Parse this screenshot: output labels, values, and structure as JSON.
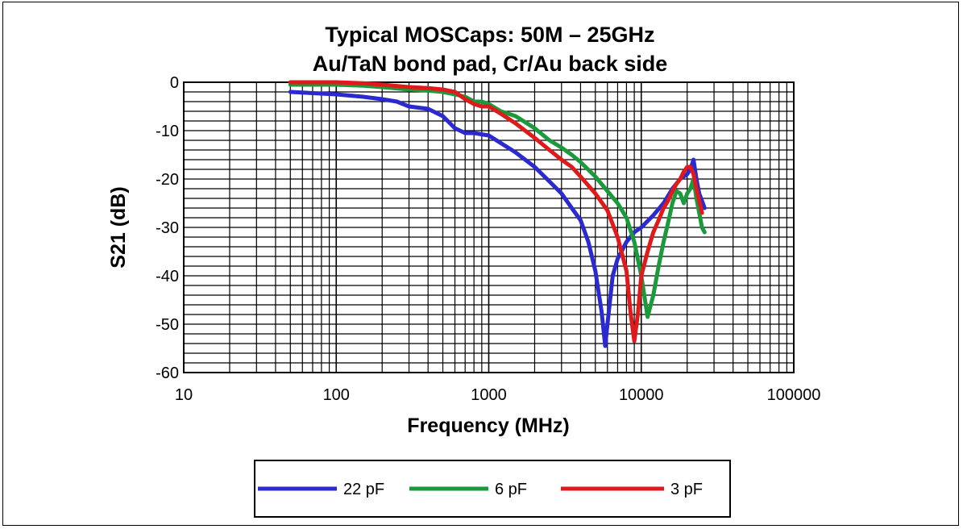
{
  "chart_data": {
    "type": "line",
    "title": "Typical MOSCaps: 50M – 25GHz",
    "subtitle": "Au/TaN bond pad, Cr/Au back side",
    "xlabel": "Frequency (MHz)",
    "ylabel": "S21 (dB)",
    "xscale": "log",
    "xlim": [
      10,
      100000
    ],
    "ylim": [
      -60,
      0
    ],
    "xticks": [
      "10",
      "100",
      "1000",
      "10000",
      "100000"
    ],
    "yticks": [
      "0",
      "-10",
      "-20",
      "-30",
      "-40",
      "-50",
      "-60"
    ],
    "grid": true,
    "legend": "bottom",
    "series": [
      {
        "name": "22 pF",
        "color": "#2a2ad0",
        "x": [
          50,
          100,
          150,
          200,
          250,
          300,
          400,
          500,
          600,
          700,
          800,
          1000,
          1500,
          2000,
          2500,
          3000,
          3500,
          4000,
          4500,
          5000,
          5500,
          5800,
          6000,
          6500,
          7000,
          8000,
          9000,
          10000,
          12000,
          14000,
          16000,
          18000,
          20000,
          21000,
          22000,
          23000,
          24000,
          25000,
          26000
        ],
        "y": [
          -2,
          -2.5,
          -3,
          -3.5,
          -4,
          -5,
          -5.5,
          -7,
          -9.5,
          -10.5,
          -10.5,
          -11,
          -14.5,
          -17.5,
          -20.5,
          -23,
          -26,
          -28.5,
          -33,
          -39,
          -47.5,
          -54.5,
          -50,
          -40,
          -36.5,
          -33,
          -31,
          -30,
          -27.5,
          -25,
          -22,
          -20,
          -19,
          -18,
          -16,
          -20,
          -23,
          -24.5,
          -26
        ]
      },
      {
        "name": "6 pF",
        "color": "#1a9a3a",
        "x": [
          50,
          100,
          150,
          200,
          300,
          400,
          500,
          600,
          700,
          800,
          900,
          1000,
          1200,
          1500,
          2000,
          2500,
          3000,
          3500,
          4000,
          5000,
          6000,
          7000,
          8000,
          9000,
          10000,
          11000,
          12000,
          13000,
          14000,
          15000,
          16000,
          17000,
          18000,
          19000,
          20000,
          21000,
          22000,
          23000,
          24000,
          25000,
          26000
        ],
        "y": [
          -0.5,
          -0.5,
          -0.7,
          -1,
          -1.5,
          -1.7,
          -2,
          -2.5,
          -3,
          -4,
          -4,
          -4.5,
          -6,
          -7,
          -9.5,
          -12,
          -13.5,
          -15,
          -16.5,
          -19.5,
          -22.5,
          -25,
          -28,
          -33,
          -40,
          -48.5,
          -44,
          -38,
          -33,
          -29,
          -25,
          -22.5,
          -23,
          -25,
          -23,
          -22,
          -20,
          -24,
          -27,
          -30,
          -31
        ]
      },
      {
        "name": "3 pF",
        "color": "#e01a1a",
        "x": [
          50,
          100,
          150,
          200,
          300,
          400,
          500,
          600,
          700,
          800,
          900,
          1000,
          1200,
          1500,
          2000,
          2500,
          3000,
          3500,
          4000,
          5000,
          6000,
          7000,
          8000,
          8500,
          9000,
          9500,
          10000,
          11000,
          12000,
          13000,
          14000,
          15000,
          16000,
          17000,
          18000,
          19000,
          20000,
          21000,
          22000,
          23000,
          24000,
          25000
        ],
        "y": [
          0,
          0,
          -0.2,
          -0.5,
          -1,
          -1.2,
          -1.5,
          -2,
          -3.5,
          -4.5,
          -5,
          -5,
          -6.5,
          -8.5,
          -11.5,
          -14,
          -16,
          -17.5,
          -19.5,
          -23,
          -26.5,
          -32,
          -39,
          -47.5,
          -53.5,
          -48,
          -40,
          -35,
          -31,
          -28.5,
          -26,
          -24.5,
          -22.5,
          -21,
          -20,
          -18.5,
          -17.5,
          -17.5,
          -19,
          -22,
          -24.5,
          -27
        ]
      }
    ]
  }
}
